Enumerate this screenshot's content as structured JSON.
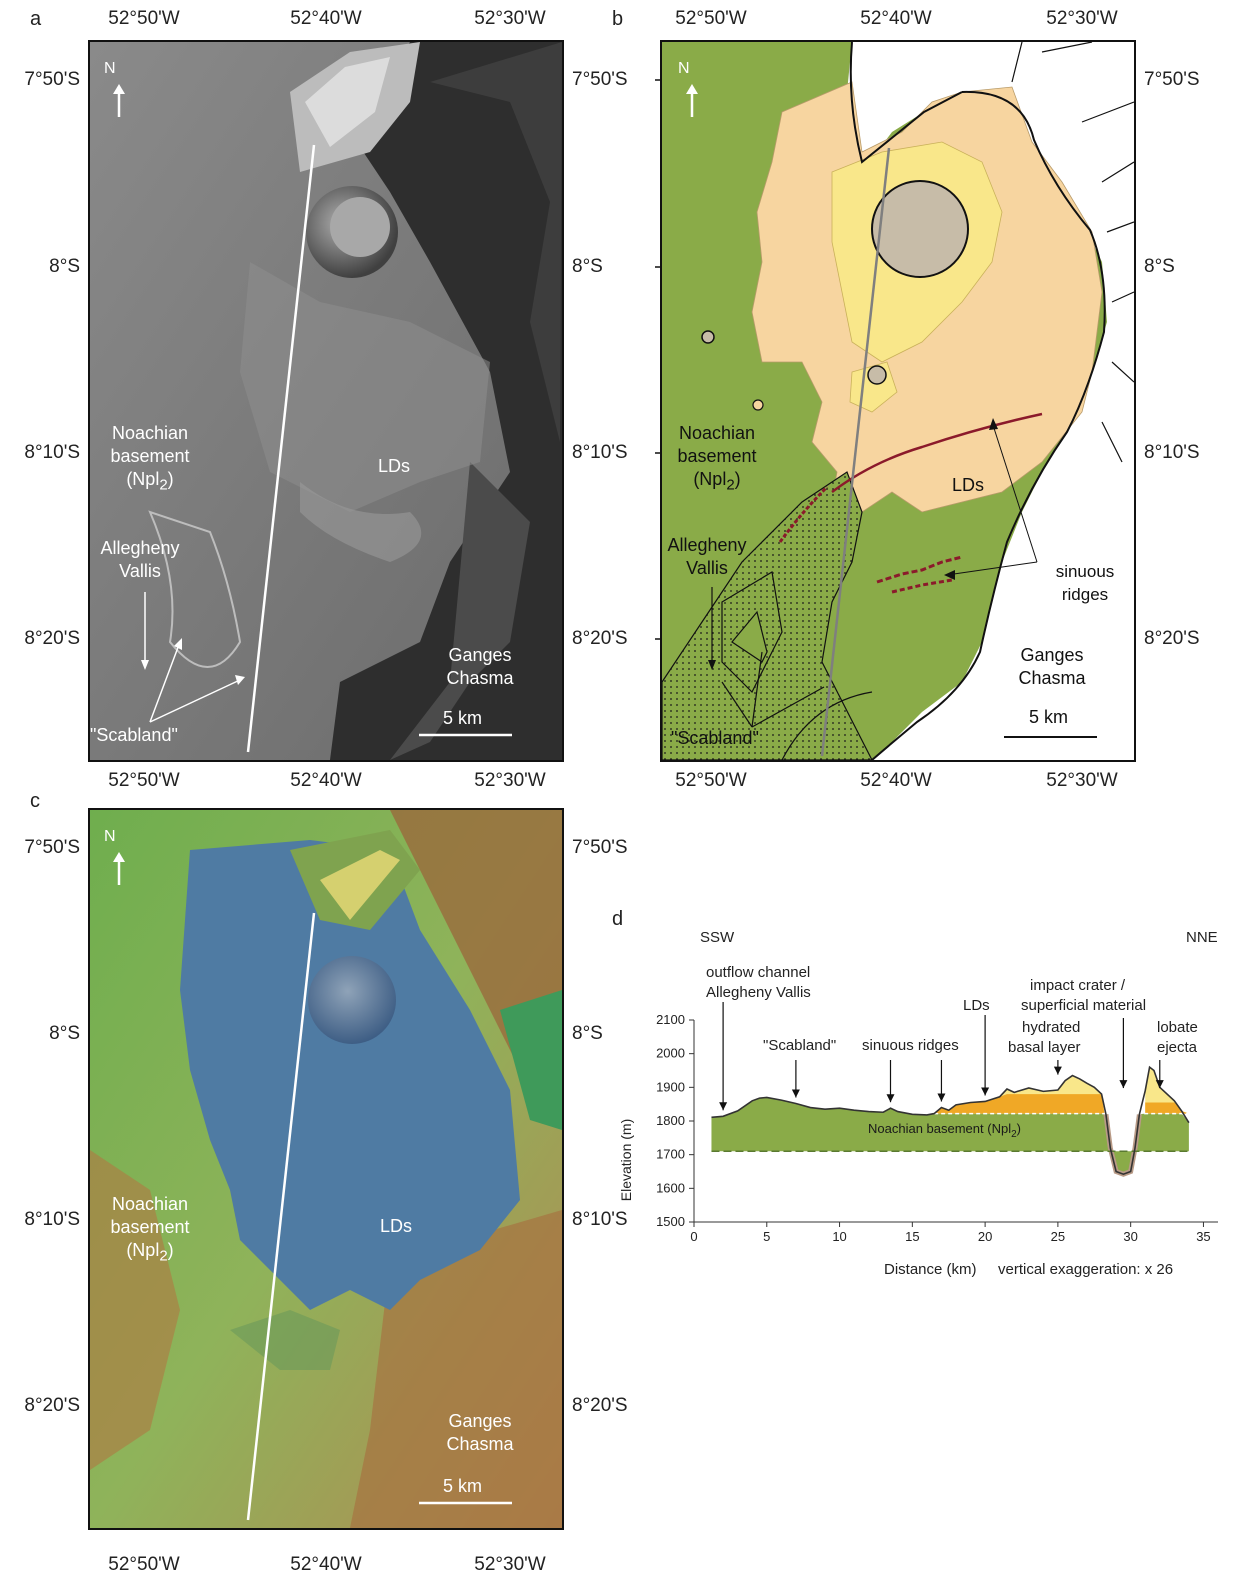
{
  "panels": {
    "a": {
      "letter": "a",
      "north": "N",
      "top_lon": [
        "52°50'W",
        "52°40'W",
        "52°30'W"
      ],
      "bottom_lon": [
        "52°50'W",
        "52°40'W",
        "52°30'W"
      ],
      "left_lat": [
        "7°50'S",
        "8°S",
        "8°10'S",
        "8°20'S"
      ],
      "right_lat": [
        "7°50'S",
        "8°S",
        "8°10'S",
        "8°20'S"
      ],
      "labels": {
        "noachian_1": "Noachian",
        "noachian_2": "basement",
        "noachian_3": "(Npl",
        "noachian_sub": "2",
        "noachian_close": ")",
        "allegheny_1": "Allegheny",
        "allegheny_2": "Vallis",
        "lds": "LDs",
        "ganges_1": "Ganges",
        "ganges_2": "Chasma",
        "scabland": "\"Scabland\"",
        "scale": "5 km"
      }
    },
    "b": {
      "letter": "b",
      "north": "N",
      "top_lon": [
        "52°50'W",
        "52°40'W",
        "52°30'W"
      ],
      "bottom_lon": [
        "52°50'W",
        "52°40'W",
        "52°30'W"
      ],
      "right_lat": [
        "7°50'S",
        "8°S",
        "8°10'S",
        "8°20'S"
      ],
      "labels": {
        "noachian_1": "Noachian",
        "noachian_2": "basement",
        "noachian_3": "(Npl",
        "noachian_sub": "2",
        "noachian_close": ")",
        "allegheny_1": "Allegheny",
        "allegheny_2": "Vallis",
        "lds": "LDs",
        "sinuous_1": "sinuous",
        "sinuous_2": "ridges",
        "ganges_1": "Ganges",
        "ganges_2": "Chasma",
        "scabland": "\"Scabland\"",
        "scale": "5 km"
      },
      "colors": {
        "basement": "#8aab48",
        "lds_light": "#f7d5a0",
        "lds_yellow": "#f9e78a",
        "crater": "#c7bca8",
        "ridge": "#8b1a2b"
      }
    },
    "c": {
      "letter": "c",
      "north": "N",
      "bottom_lon": [
        "52°50'W",
        "52°40'W",
        "52°30'W"
      ],
      "left_lat": [
        "7°50'S",
        "8°S",
        "8°10'S",
        "8°20'S"
      ],
      "right_lat": [
        "7°50'S",
        "8°S",
        "8°10'S",
        "8°20'S"
      ],
      "labels": {
        "noachian_1": "Noachian",
        "noachian_2": "basement",
        "noachian_3": "(Npl",
        "noachian_sub": "2",
        "noachian_close": ")",
        "lds": "LDs",
        "ganges_1": "Ganges",
        "ganges_2": "Chasma",
        "scale": "5 km"
      }
    },
    "d": {
      "letter": "d",
      "left_dir": "SSW",
      "right_dir": "NNE",
      "annotations": {
        "outflow_1": "outflow channel",
        "outflow_2": "Allegheny Vallis",
        "scabland": "\"Scabland\"",
        "sinuous": "sinuous ridges",
        "lds": "LDs",
        "hydrated_1": "hydrated",
        "hydrated_2": "basal layer",
        "impact_1": "impact crater /",
        "impact_2": "superficial material",
        "lobate_1": "lobate",
        "lobate_2": "ejecta",
        "noachian": "Noachian basement (Npl",
        "noachian_sub": "2",
        "noachian_close": ")"
      },
      "xlabel": "Distance (km)",
      "ylabel": "Elevation (m)",
      "vertical_exaggeration": "vertical exaggeration: x 26"
    }
  },
  "chart_data": {
    "type": "area",
    "xlabel": "Distance (km)",
    "ylabel": "Elevation (m)",
    "xlim": [
      0,
      36
    ],
    "ylim": [
      1500,
      2100
    ],
    "x_ticks": [
      0,
      5,
      10,
      15,
      20,
      25,
      30,
      35
    ],
    "y_ticks": [
      1500,
      1600,
      1700,
      1800,
      1900,
      2000,
      2100
    ],
    "profile": {
      "x": [
        1.2,
        2,
        3,
        4,
        4.5,
        5,
        6,
        7,
        8,
        9,
        10,
        11,
        12,
        13,
        13.5,
        14,
        15,
        16,
        16.5,
        17,
        17.5,
        18,
        19,
        20,
        21,
        21.5,
        22,
        23,
        24,
        25,
        25.5,
        26,
        26.5,
        27,
        27.5,
        28,
        28.3,
        28.6,
        29,
        29.5,
        30,
        30.3,
        30.6,
        31,
        31.3,
        31.6,
        32,
        33,
        33.5,
        34
      ],
      "y": [
        1811,
        1814,
        1830,
        1860,
        1868,
        1870,
        1862,
        1852,
        1840,
        1835,
        1838,
        1832,
        1828,
        1826,
        1838,
        1828,
        1820,
        1818,
        1822,
        1840,
        1832,
        1848,
        1855,
        1858,
        1872,
        1895,
        1885,
        1898,
        1888,
        1892,
        1920,
        1935,
        1925,
        1912,
        1900,
        1880,
        1820,
        1720,
        1650,
        1642,
        1650,
        1720,
        1820,
        1890,
        1960,
        1950,
        1900,
        1860,
        1830,
        1795
      ]
    },
    "basement_top_x": [
      16.5,
      34
    ],
    "basement_top_y": 1822,
    "basement_bottom_y": 1710,
    "arrows_x": [
      2,
      7,
      13.5,
      17,
      20,
      25,
      29.5,
      32
    ]
  }
}
